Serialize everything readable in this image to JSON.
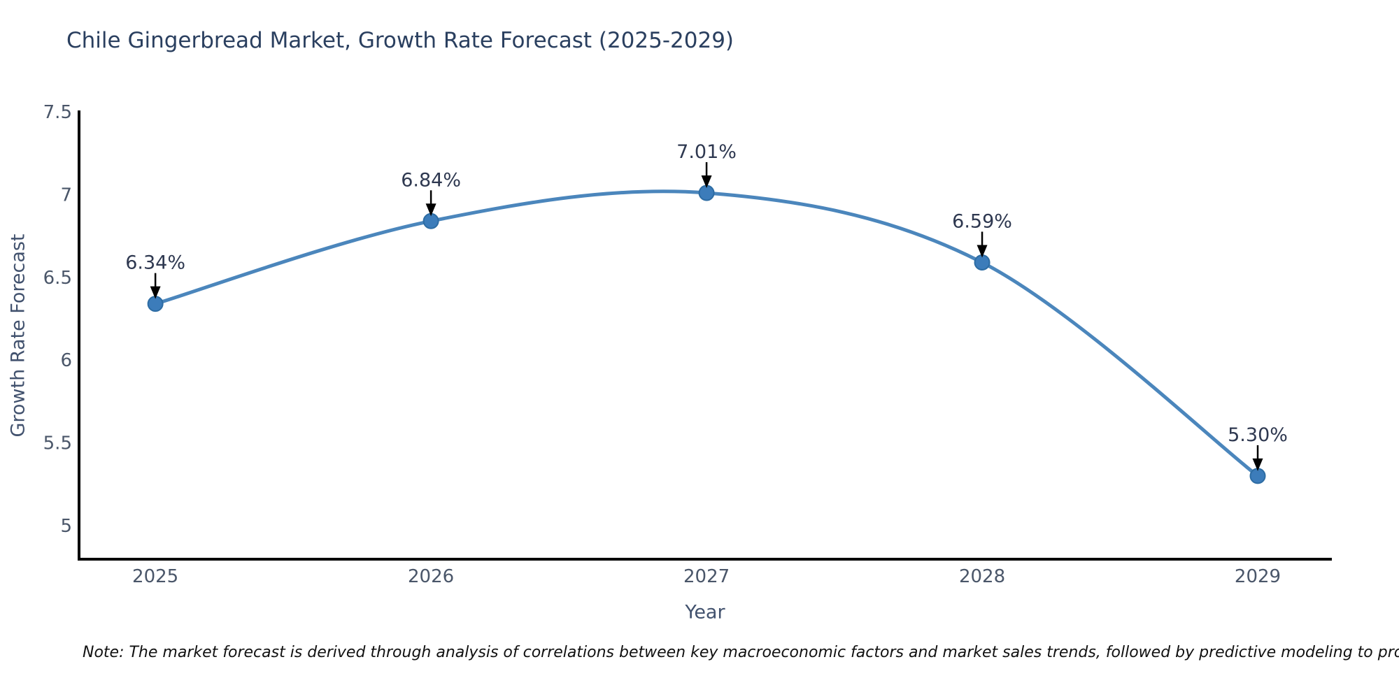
{
  "title": "Chile Gingerbread Market, Growth Rate Forecast (2025-2029)",
  "note": "Note: The market forecast is derived through analysis of correlations between key macroeconomic factors and market sales trends, followed by predictive modeling to project future sales",
  "chart_data": {
    "type": "line",
    "title": "Chile Gingerbread Market, Growth Rate Forecast (2025-2029)",
    "xlabel": "Year",
    "ylabel": "Growth Rate Forecast",
    "x": [
      2025,
      2026,
      2027,
      2028,
      2029
    ],
    "series": [
      {
        "name": "Growth Rate Forecast",
        "values": [
          6.34,
          6.84,
          7.01,
          6.59,
          5.3
        ]
      }
    ],
    "point_labels": [
      "6.34%",
      "6.84%",
      "7.01%",
      "6.59%",
      "5.30%"
    ],
    "x_tick_labels": [
      "2025",
      "2026",
      "2027",
      "2028",
      "2029"
    ],
    "y_ticks": [
      5,
      5.5,
      6,
      6.5,
      7,
      7.5
    ],
    "y_tick_labels": [
      "5",
      "5.5",
      "6",
      "6.5",
      "7",
      "7.5"
    ],
    "ylim": [
      4.797,
      7.5
    ],
    "xlim": [
      2024.723,
      2029.269
    ],
    "grid": false,
    "legend": false,
    "line_shape": "spline",
    "colors": {
      "line": "#4b86bc",
      "marker": "#3c7cba",
      "marker_edge": "#2d6ca3",
      "axis": "#000000",
      "title_text": "#2a3f5f",
      "axis_title_text": "#42526e",
      "tick_text": "#4a5669",
      "annotation_text": "#2e3850",
      "arrow": "#000000",
      "background": "#ffffff"
    }
  }
}
